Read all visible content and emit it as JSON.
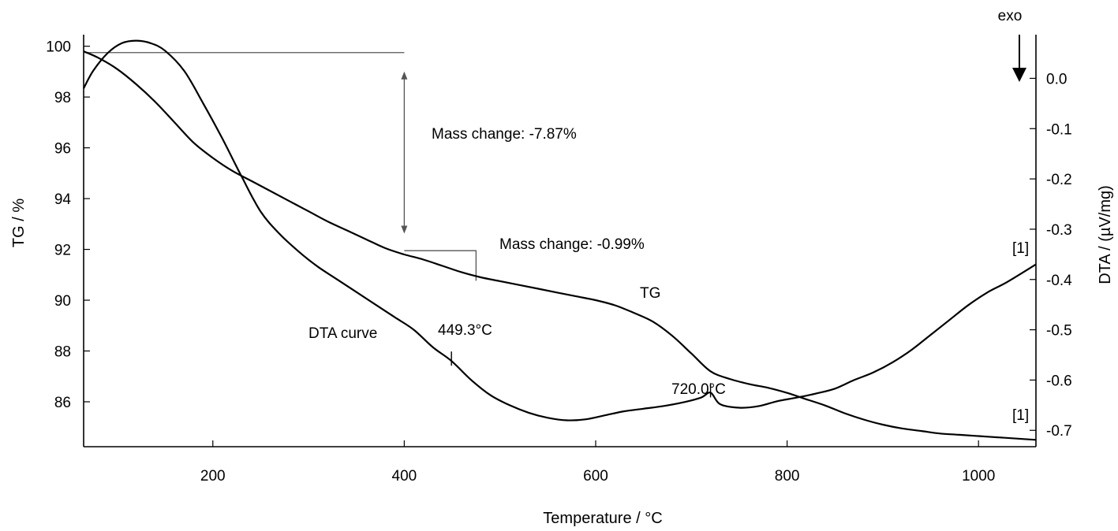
{
  "chart_data": {
    "type": "line",
    "xlabel": "Temperature / °C",
    "ylabel_left": "TG / %",
    "ylabel_right": "DTA / (µV/mg)",
    "xlim": [
      65,
      1060
    ],
    "ylim_left": [
      84.2,
      100.3
    ],
    "ylim_right": [
      -0.72,
      0.09
    ],
    "x_ticks": [
      200,
      400,
      600,
      800,
      1000
    ],
    "y_left_ticks": [
      100,
      98,
      96,
      94,
      92,
      90,
      88,
      86
    ],
    "y_left_tick_labels": [
      "100",
      "98",
      "96",
      "94",
      "92",
      "90",
      "88",
      "86"
    ],
    "y_right_ticks": [
      0.0,
      -0.1,
      -0.2,
      -0.3,
      -0.4,
      -0.5,
      -0.6,
      -0.7
    ],
    "y_right_tick_labels": [
      "0.0",
      "-0.1",
      "-0.2",
      "-0.3",
      "-0.4",
      "-0.5",
      "-0.6",
      "-0.7"
    ],
    "series": [
      {
        "name": "TG",
        "axis": "left",
        "x": [
          65,
          80,
          100,
          120,
          140,
          160,
          180,
          200,
          220,
          240,
          260,
          280,
          300,
          320,
          340,
          360,
          380,
          400,
          420,
          440,
          460,
          480,
          500,
          520,
          540,
          560,
          580,
          600,
          620,
          640,
          660,
          680,
          700,
          720,
          740,
          760,
          780,
          800,
          820,
          840,
          860,
          880,
          900,
          920,
          940,
          960,
          980,
          1000,
          1020,
          1040,
          1060
        ],
        "y": [
          99.8,
          99.55,
          99.1,
          98.5,
          97.8,
          97.0,
          96.2,
          95.6,
          95.1,
          94.7,
          94.3,
          93.9,
          93.5,
          93.1,
          92.75,
          92.4,
          92.05,
          91.8,
          91.6,
          91.35,
          91.1,
          90.9,
          90.75,
          90.6,
          90.45,
          90.3,
          90.15,
          90.0,
          89.8,
          89.5,
          89.15,
          88.6,
          87.9,
          87.2,
          86.9,
          86.7,
          86.55,
          86.35,
          86.1,
          85.85,
          85.55,
          85.3,
          85.1,
          84.95,
          84.85,
          84.75,
          84.7,
          84.65,
          84.6,
          84.55,
          84.5
        ]
      },
      {
        "name": "DTA curve",
        "axis": "right",
        "x": [
          65,
          75,
          90,
          105,
          120,
          135,
          150,
          170,
          190,
          210,
          230,
          250,
          270,
          290,
          310,
          330,
          350,
          370,
          390,
          410,
          430,
          449.3,
          470,
          490,
          510,
          530,
          550,
          570,
          590,
          610,
          630,
          650,
          670,
          690,
          710,
          720,
          730,
          750,
          770,
          790,
          810,
          830,
          850,
          870,
          890,
          910,
          930,
          950,
          970,
          990,
          1010,
          1030,
          1060
        ],
        "y": [
          -0.02,
          0.015,
          0.05,
          0.07,
          0.075,
          0.07,
          0.055,
          0.015,
          -0.05,
          -0.12,
          -0.195,
          -0.265,
          -0.31,
          -0.345,
          -0.375,
          -0.4,
          -0.425,
          -0.45,
          -0.475,
          -0.5,
          -0.535,
          -0.562,
          -0.6,
          -0.63,
          -0.65,
          -0.665,
          -0.675,
          -0.68,
          -0.678,
          -0.67,
          -0.662,
          -0.657,
          -0.652,
          -0.645,
          -0.635,
          -0.625,
          -0.648,
          -0.655,
          -0.652,
          -0.642,
          -0.635,
          -0.627,
          -0.617,
          -0.6,
          -0.585,
          -0.565,
          -0.54,
          -0.51,
          -0.48,
          -0.45,
          -0.425,
          -0.405,
          -0.37
        ]
      }
    ],
    "annotations": {
      "mass_change_1": "Mass change: -7.87%",
      "mass_change_2": "Mass change: -0.99%",
      "tg_label": "TG",
      "dta_label": "DTA curve",
      "peak_1": "449.3°C",
      "peak_2": "720.0°C",
      "marker_tg": "[1]",
      "marker_dta": "[1]",
      "exo": "exo"
    },
    "mass_step_1": {
      "x": 400,
      "y_top": 99.75,
      "y_bottom": 92.0
    },
    "mass_step_2": {
      "x_start": 400,
      "x_end": 475,
      "y_top": 91.95,
      "y_bottom": 90.95
    },
    "peak_points": [
      {
        "x": 449.3,
        "y": -0.562
      },
      {
        "x": 720.0,
        "y": -0.625
      }
    ]
  }
}
